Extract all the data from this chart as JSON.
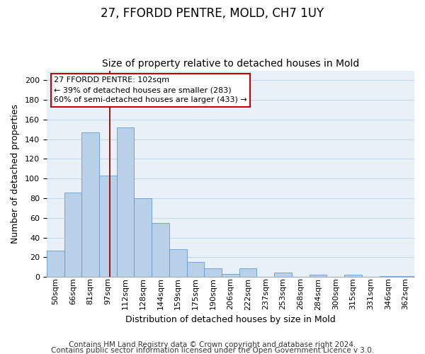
{
  "title": "27, FFORDD PENTRE, MOLD, CH7 1UY",
  "subtitle": "Size of property relative to detached houses in Mold",
  "xlabel": "Distribution of detached houses by size in Mold",
  "ylabel": "Number of detached properties",
  "bar_color": "#b8d0e8",
  "bar_edge_color": "#6699cc",
  "grid_color": "#c8d8eb",
  "background_color": "#e8f0f8",
  "bin_labels": [
    "50sqm",
    "66sqm",
    "81sqm",
    "97sqm",
    "112sqm",
    "128sqm",
    "144sqm",
    "159sqm",
    "175sqm",
    "190sqm",
    "206sqm",
    "222sqm",
    "237sqm",
    "253sqm",
    "268sqm",
    "284sqm",
    "300sqm",
    "315sqm",
    "331sqm",
    "346sqm",
    "362sqm"
  ],
  "bar_heights": [
    27,
    86,
    147,
    103,
    152,
    80,
    55,
    28,
    15,
    9,
    3,
    9,
    0,
    4,
    0,
    2,
    0,
    2,
    0,
    1,
    1
  ],
  "vline_x": 3.62,
  "vline_color": "#990000",
  "annotation_title": "27 FFORDD PENTRE: 102sqm",
  "annotation_line1": "← 39% of detached houses are smaller (283)",
  "annotation_line2": "60% of semi-detached houses are larger (433) →",
  "annotation_box_color": "white",
  "annotation_box_edge": "#cc0000",
  "ylim": [
    0,
    210
  ],
  "yticks": [
    0,
    20,
    40,
    60,
    80,
    100,
    120,
    140,
    160,
    180,
    200
  ],
  "footer1": "Contains HM Land Registry data © Crown copyright and database right 2024.",
  "footer2": "Contains public sector information licensed under the Open Government Licence v 3.0.",
  "title_fontsize": 12,
  "subtitle_fontsize": 10,
  "axis_label_fontsize": 9,
  "tick_fontsize": 8,
  "annot_fontsize": 8,
  "footer_fontsize": 7.5
}
